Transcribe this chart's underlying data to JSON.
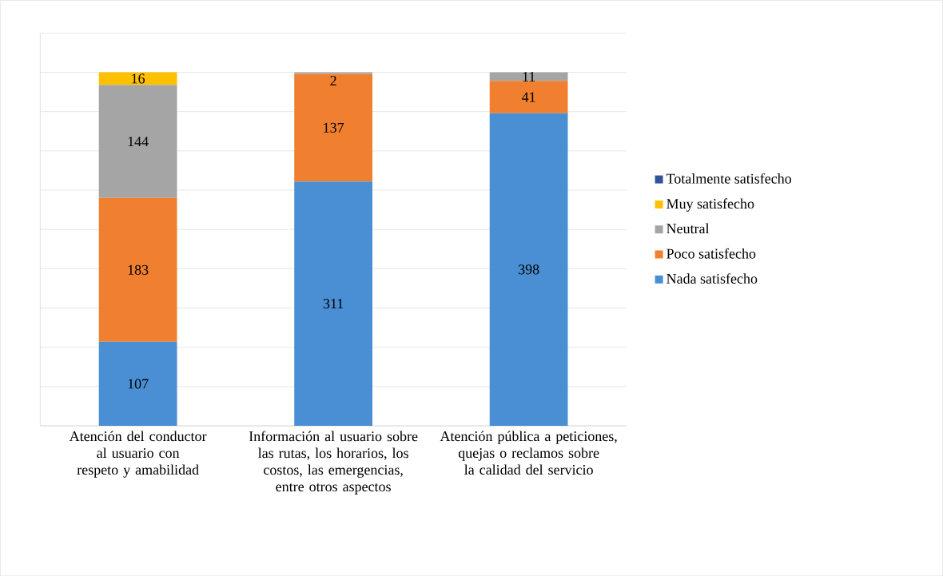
{
  "chart_data": {
    "type": "bar",
    "stacked": true,
    "categories": [
      "Atención del conductor al usuario con respeto y amabilidad",
      "Información al usuario sobre las rutas, los horarios, los costos, las emergencias, entre otros aspectos",
      "Atención pública a peticiones, quejas o reclamos sobre la calidad del servicio"
    ],
    "series": [
      {
        "name": "Nada satisfecho",
        "color": "#4a8fd4",
        "values": [
          107,
          311,
          398
        ],
        "value_labels": [
          "107",
          "311",
          "398"
        ]
      },
      {
        "name": "Poco satisfecho",
        "color": "#f07f2f",
        "values": [
          183,
          137,
          41
        ],
        "value_labels": [
          "183",
          "137",
          "41"
        ]
      },
      {
        "name": "Neutral",
        "color": "#a5a5a5",
        "values": [
          144,
          2,
          11
        ],
        "value_labels": [
          "144",
          "2",
          "11"
        ]
      },
      {
        "name": "Muy satisfecho",
        "color": "#ffc000",
        "values": [
          16,
          0,
          0
        ],
        "value_labels": [
          "16",
          null,
          null
        ]
      },
      {
        "name": "Totalmente satisfecho",
        "color": "#2f5597",
        "values": [
          0,
          0,
          0
        ],
        "value_labels": [
          null,
          null,
          null
        ]
      }
    ],
    "ylim": [
      0,
      500
    ],
    "yticks": [
      {
        "value": 0,
        "label": null
      },
      {
        "value": 50,
        "label": null
      },
      {
        "value": 100,
        "label": null
      },
      {
        "value": 150,
        "label": null
      },
      {
        "value": 200,
        "label": null
      },
      {
        "value": 250,
        "label": null
      },
      {
        "value": 300,
        "label": null
      },
      {
        "value": 350,
        "label": null
      },
      {
        "value": 400,
        "label": null
      },
      {
        "value": 450,
        "label": null
      },
      {
        "value": 500,
        "label": null
      }
    ],
    "tick_labels": "x",
    "grid": "y",
    "legend": "right"
  }
}
